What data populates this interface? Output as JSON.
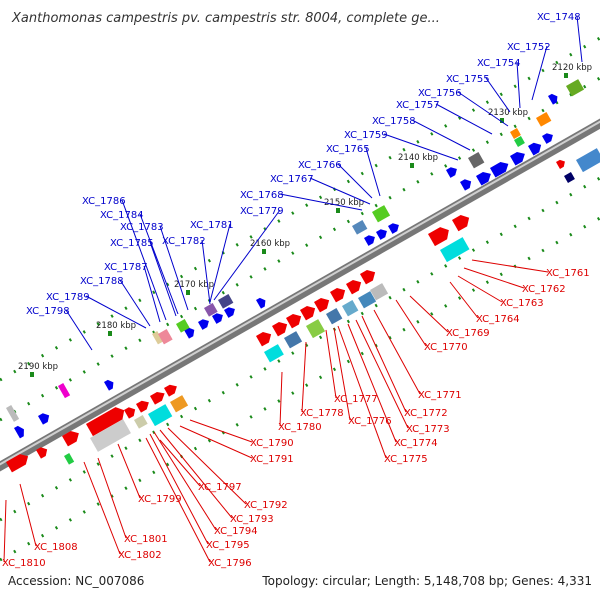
{
  "title": "Xanthomonas campestris pv. campestris str. 8004, complete ge...",
  "footer": {
    "accession": "Accession: NC_007086",
    "topology": "Topology: circular; Length: 5,148,708 bp; Genes: 4,331"
  },
  "colors": {
    "forward_label": "#0000cc",
    "reverse_label": "#dd0000",
    "backbone": "#888888",
    "tick": "#1a8a1a",
    "feature_blue": "#0000ee",
    "feature_red": "#ee0000"
  },
  "ticks": [
    "2120 kbp",
    "2130 kbp",
    "2140 kbp",
    "2150 kbp",
    "2160 kbp",
    "2170 kbp",
    "2180 kbp",
    "2190 kbp"
  ],
  "forward_labels": [
    "XC_1748",
    "XC_1752",
    "XC_1754",
    "XC_1755",
    "XC_1756",
    "XC_1757",
    "XC_1758",
    "XC_1759",
    "XC_1765",
    "XC_1766",
    "XC_1767",
    "XC_1768",
    "XC_1779",
    "XC_1781",
    "XC_1782",
    "XC_1783",
    "XC_1784",
    "XC_1785",
    "XC_1786",
    "XC_1787",
    "XC_1788",
    "XC_1789",
    "XC_1798"
  ],
  "reverse_labels": [
    "XC_1761",
    "XC_1762",
    "XC_1763",
    "XC_1764",
    "XC_1769",
    "XC_1770",
    "XC_1771",
    "XC_1772",
    "XC_1773",
    "XC_1774",
    "XC_1775",
    "XC_1776",
    "XC_1777",
    "XC_1778",
    "XC_1780",
    "XC_1790",
    "XC_1791",
    "XC_1792",
    "XC_1793",
    "XC_1794",
    "XC_1795",
    "XC_1796",
    "XC_1797",
    "XC_1799",
    "XC_1801",
    "XC_1802",
    "XC_1808",
    "XC_1810"
  ]
}
